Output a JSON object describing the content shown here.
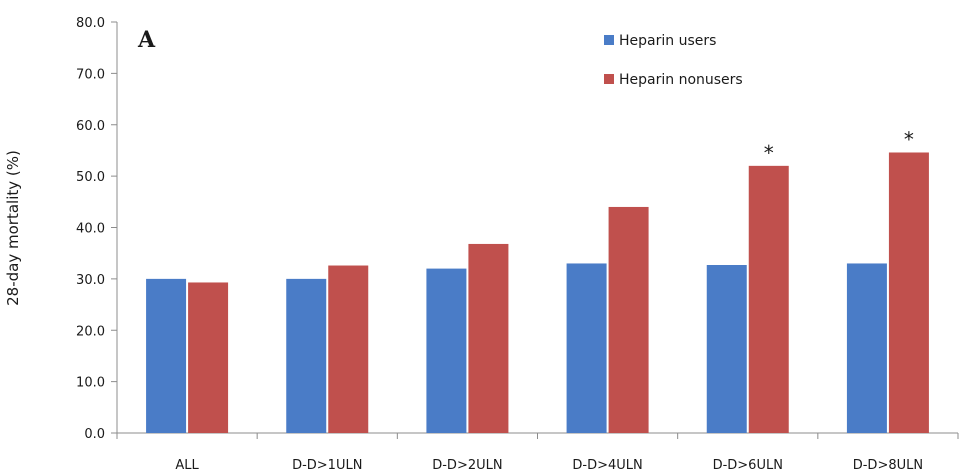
{
  "chart_data": {
    "type": "bar",
    "panel_label": "A",
    "ylabel": "28-day mortality (%)",
    "ylim": [
      0,
      80
    ],
    "ytick_step": 10,
    "ytick_labels": [
      "0.0",
      "10.0",
      "20.0",
      "30.0",
      "40.0",
      "50.0",
      "60.0",
      "70.0",
      "80.0"
    ],
    "categories": [
      "ALL",
      "D-D>1ULN",
      "D-D>2ULN",
      "D-D>4ULN",
      "D-D>6ULN",
      "D-D>8ULN"
    ],
    "series": [
      {
        "name": "Heparin users",
        "color": "#4a7cc7",
        "values": [
          30.0,
          30.0,
          32.0,
          33.0,
          32.7,
          33.0
        ]
      },
      {
        "name": "Heparin nonusers",
        "color": "#c0504d",
        "values": [
          29.3,
          32.6,
          36.8,
          44.0,
          52.0,
          54.6
        ]
      }
    ],
    "annotations": [
      {
        "category_index": 4,
        "series_index": 1,
        "text": "*"
      },
      {
        "category_index": 5,
        "series_index": 1,
        "text": "*"
      }
    ],
    "legend_position": "top-right",
    "grid": false
  }
}
